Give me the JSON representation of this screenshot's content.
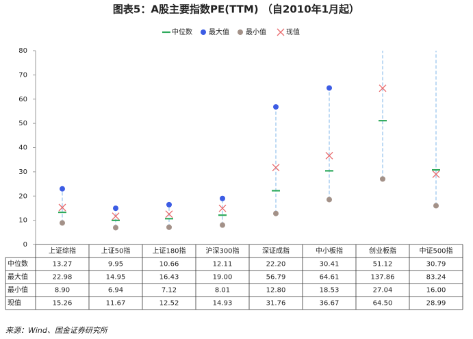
{
  "chart_data": {
    "type": "dot",
    "title": "图表5：A股主要指数PE(TTM) （自2010年1月起）",
    "source": "来源：Wind、国金证券研究所",
    "categories": [
      "上证综指",
      "上证50指",
      "上证180指",
      "沪深300指",
      "深证成指",
      "中小板指",
      "创业板指",
      "中证500指"
    ],
    "series": [
      {
        "name": "中位数",
        "color": "#2eaa5c",
        "marker": "dash",
        "values": [
          13.27,
          9.95,
          10.66,
          12.11,
          22.2,
          30.41,
          51.12,
          30.79
        ],
        "value_labels": [
          "13.27",
          "9.95",
          "10.66",
          "12.11",
          "22.20",
          "30.41",
          "51.12",
          "30.79"
        ]
      },
      {
        "name": "最大值",
        "color": "#3c5ce4",
        "marker": "dot",
        "values": [
          22.98,
          14.95,
          16.43,
          19.0,
          56.79,
          64.61,
          137.86,
          83.24
        ],
        "value_labels": [
          "22.98",
          "14.95",
          "16.43",
          "19.00",
          "56.79",
          "64.61",
          "137.86",
          "83.24"
        ]
      },
      {
        "name": "最小值",
        "color": "#a39188",
        "marker": "dot",
        "values": [
          8.9,
          6.94,
          7.12,
          8.01,
          12.8,
          18.53,
          27.04,
          16.0
        ],
        "value_labels": [
          "8.90",
          "6.94",
          "7.12",
          "8.01",
          "12.80",
          "18.53",
          "27.04",
          "16.00"
        ]
      },
      {
        "name": "现值",
        "color": "#e8696b",
        "marker": "x",
        "values": [
          15.26,
          11.67,
          12.52,
          14.93,
          31.76,
          36.67,
          64.5,
          28.99
        ],
        "value_labels": [
          "15.26",
          "11.67",
          "12.52",
          "14.93",
          "31.76",
          "36.67",
          "64.50",
          "28.99"
        ]
      }
    ],
    "range_color": "#a9cdf0",
    "ylim": [
      0,
      80
    ],
    "yticks": [
      0,
      10,
      20,
      30,
      40,
      50,
      60,
      70,
      80
    ]
  }
}
